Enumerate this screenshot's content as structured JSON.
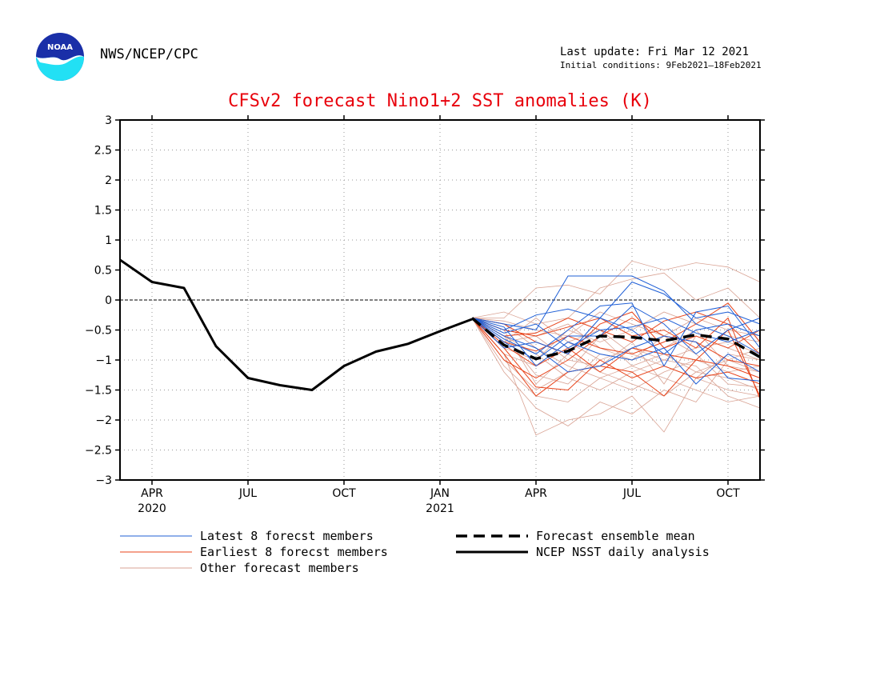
{
  "header": {
    "agency": "NWS/NCEP/CPC",
    "last_update": "Last update: Fri Mar 12 2021",
    "initial_conditions": "Initial conditions: 9Feb2021–18Feb2021",
    "logo_icon": "noaa-logo-icon",
    "logo_text": "NOAA"
  },
  "chart_data": {
    "type": "line",
    "title": "CFSv2 forecast Nino1+2 SST anomalies (K)",
    "xlabel": "",
    "ylabel": "",
    "x_range": [
      "2020-03",
      "2021-11"
    ],
    "ylim": [
      -3,
      3
    ],
    "y_ticks": [
      "3",
      "2.5",
      "2",
      "1.5",
      "1",
      "0.5",
      "0",
      "−0.5",
      "−1",
      "−1.5",
      "−2",
      "−2.5",
      "−3"
    ],
    "x_ticks": [
      {
        "month": "2020-04",
        "label": "APR",
        "year": "2020"
      },
      {
        "month": "2020-07",
        "label": "JUL",
        "year": ""
      },
      {
        "month": "2020-10",
        "label": "OCT",
        "year": ""
      },
      {
        "month": "2021-01",
        "label": "JAN",
        "year": "2021"
      },
      {
        "month": "2021-04",
        "label": "APR",
        "year": ""
      },
      {
        "month": "2021-07",
        "label": "JUL",
        "year": ""
      },
      {
        "month": "2021-10",
        "label": "OCT",
        "year": ""
      }
    ],
    "grid": true,
    "colors": {
      "observed": "#000000",
      "mean": "#000000",
      "latest": "#1f5fd6",
      "earliest": "#e8431a",
      "other": "#d9a394",
      "zero_line": "#000000"
    },
    "legend": {
      "placement": "bottom",
      "entries": [
        {
          "label": "Latest 8 forecst members",
          "style": "latest"
        },
        {
          "label": "Earliest 8 forecst members",
          "style": "earliest"
        },
        {
          "label": "Other forecast members",
          "style": "other"
        },
        {
          "label": "Forecast ensemble mean",
          "style": "mean"
        },
        {
          "label": "NCEP NSST daily analysis",
          "style": "observed"
        }
      ]
    },
    "forecast_months": [
      "2021-02",
      "2021-03",
      "2021-04",
      "2021-05",
      "2021-06",
      "2021-07",
      "2021-08",
      "2021-09",
      "2021-10",
      "2021-11"
    ],
    "observed": {
      "name": "NCEP NSST daily analysis",
      "x": [
        "2020-03",
        "2020-04",
        "2020-05",
        "2020-06",
        "2020-07",
        "2020-08",
        "2020-09",
        "2020-10",
        "2020-11",
        "2020-12",
        "2021-01",
        "2021-02"
      ],
      "y": [
        0.67,
        0.3,
        0.2,
        -0.77,
        -1.3,
        -1.42,
        -1.5,
        -1.1,
        -0.86,
        -0.73,
        -0.52,
        -0.32
      ]
    },
    "ensemble_mean": {
      "name": "Forecast ensemble mean",
      "y": [
        -0.3,
        -0.75,
        -0.98,
        -0.85,
        -0.6,
        -0.62,
        -0.68,
        -0.58,
        -0.65,
        -0.95
      ]
    },
    "members": [
      {
        "group": "latest",
        "y": [
          -0.3,
          -0.4,
          -0.5,
          0.4,
          0.4,
          0.4,
          0.15,
          -0.4,
          -0.6,
          -0.9
        ]
      },
      {
        "group": "latest",
        "y": [
          -0.3,
          -0.5,
          -0.25,
          -0.15,
          -0.3,
          0.3,
          0.1,
          -0.3,
          -0.2,
          -0.4
        ]
      },
      {
        "group": "latest",
        "y": [
          -0.3,
          -0.6,
          -0.8,
          -1.2,
          -1.1,
          -0.8,
          -0.6,
          -0.7,
          -1.3,
          -1.35
        ]
      },
      {
        "group": "latest",
        "y": [
          -0.3,
          -0.7,
          -1.0,
          -0.6,
          -0.6,
          -0.1,
          -0.4,
          -0.9,
          -0.5,
          -0.3
        ]
      },
      {
        "group": "latest",
        "y": [
          -0.3,
          -0.8,
          -0.7,
          -0.9,
          -0.3,
          -0.5,
          -0.9,
          -0.5,
          -0.4,
          -0.6
        ]
      },
      {
        "group": "latest",
        "y": [
          -0.3,
          -0.45,
          -1.1,
          -0.7,
          -0.9,
          -1.0,
          -0.8,
          -1.4,
          -0.9,
          -1.2
        ]
      },
      {
        "group": "latest",
        "y": [
          -0.3,
          -0.55,
          -0.4,
          -0.8,
          -0.5,
          -0.45,
          -0.3,
          -0.55,
          -0.7,
          -0.5
        ]
      },
      {
        "group": "latest",
        "y": [
          -0.3,
          -0.65,
          -0.9,
          -0.5,
          -0.1,
          -0.05,
          -1.1,
          -0.2,
          -0.1,
          -0.8
        ]
      },
      {
        "group": "earliest",
        "y": [
          -0.3,
          -0.5,
          -0.6,
          -0.45,
          -0.3,
          -0.6,
          -0.5,
          -0.8,
          -0.3,
          -1.65
        ]
      },
      {
        "group": "earliest",
        "y": [
          -0.3,
          -0.9,
          -1.6,
          -1.2,
          -1.1,
          -1.2,
          -1.6,
          -1.0,
          -0.5,
          -1.6
        ]
      },
      {
        "group": "earliest",
        "y": [
          -0.3,
          -0.7,
          -0.85,
          -0.6,
          -0.8,
          -0.9,
          -0.7,
          -0.4,
          -0.05,
          -0.7
        ]
      },
      {
        "group": "earliest",
        "y": [
          -0.3,
          -1.0,
          -1.3,
          -1.0,
          -0.6,
          -0.3,
          -0.6,
          -0.7,
          -1.0,
          -1.1
        ]
      },
      {
        "group": "earliest",
        "y": [
          -0.3,
          -0.6,
          -0.55,
          -0.3,
          -0.5,
          -0.7,
          -0.35,
          -0.2,
          -0.4,
          -0.9
        ]
      },
      {
        "group": "earliest",
        "y": [
          -0.3,
          -0.8,
          -1.45,
          -1.5,
          -1.0,
          -1.3,
          -1.1,
          -1.3,
          -1.2,
          -1.4
        ]
      },
      {
        "group": "earliest",
        "y": [
          -0.3,
          -0.4,
          -0.7,
          -0.9,
          -0.4,
          -0.2,
          -0.8,
          -0.6,
          -0.8,
          -0.5
        ]
      },
      {
        "group": "earliest",
        "y": [
          -0.3,
          -0.75,
          -1.1,
          -0.8,
          -1.2,
          -0.8,
          -0.9,
          -1.0,
          -1.1,
          -1.3
        ]
      },
      {
        "group": "other",
        "y": [
          -0.3,
          -0.3,
          0.2,
          0.25,
          0.1,
          0.65,
          0.5,
          0.62,
          0.55,
          0.3
        ]
      },
      {
        "group": "other",
        "y": [
          -0.3,
          -0.9,
          -2.25,
          -2.0,
          -1.9,
          -1.6,
          -2.2,
          -1.3,
          -1.5,
          -1.6
        ]
      },
      {
        "group": "other",
        "y": [
          -0.3,
          -1.2,
          -1.8,
          -2.1,
          -1.7,
          -1.9,
          -1.5,
          -1.7,
          -1.0,
          -1.2
        ]
      },
      {
        "group": "other",
        "y": [
          -0.3,
          -0.2,
          -0.4,
          -0.3,
          0.2,
          0.35,
          0.45,
          0.0,
          0.2,
          -0.3
        ]
      },
      {
        "group": "other",
        "y": [
          -0.3,
          -1.0,
          -1.5,
          -1.2,
          -0.6,
          -1.1,
          -0.9,
          -1.2,
          -1.3,
          -1.5
        ]
      },
      {
        "group": "other",
        "y": [
          -0.3,
          -0.5,
          -0.6,
          -1.0,
          -1.1,
          -0.7,
          -1.4,
          -0.6,
          -0.8,
          -1.0
        ]
      },
      {
        "group": "other",
        "y": [
          -0.3,
          -0.6,
          -1.25,
          -1.4,
          -0.9,
          -1.0,
          -0.6,
          -0.9,
          -1.4,
          -1.45
        ]
      },
      {
        "group": "other",
        "y": [
          -0.3,
          -0.7,
          -0.3,
          -0.7,
          -1.0,
          -0.8,
          -1.0,
          -0.8,
          -0.7,
          -0.9
        ]
      },
      {
        "group": "other",
        "y": [
          -0.3,
          -0.8,
          -1.0,
          -0.5,
          -0.7,
          -0.5,
          -0.2,
          -0.4,
          -0.6,
          -0.7
        ]
      },
      {
        "group": "other",
        "y": [
          -0.3,
          -0.4,
          -0.8,
          -1.1,
          -1.3,
          -1.5,
          -1.2,
          -1.0,
          -1.2,
          -1.1
        ]
      },
      {
        "group": "other",
        "y": [
          -0.3,
          -0.9,
          -1.1,
          -0.7,
          -0.5,
          -0.9,
          -1.1,
          -1.3,
          -0.9,
          -1.0
        ]
      },
      {
        "group": "other",
        "y": [
          -0.3,
          -0.6,
          -0.9,
          -1.3,
          -1.5,
          -1.2,
          -1.0,
          -1.1,
          -1.6,
          -1.8
        ]
      },
      {
        "group": "other",
        "y": [
          -0.3,
          -0.5,
          -1.4,
          -0.9,
          -1.2,
          -1.4,
          -1.6,
          -1.2,
          -1.0,
          -0.8
        ]
      },
      {
        "group": "other",
        "y": [
          -0.3,
          -0.7,
          -0.6,
          -0.4,
          -0.8,
          -1.0,
          -0.8,
          -0.5,
          -1.1,
          -1.2
        ]
      },
      {
        "group": "other",
        "y": [
          -0.3,
          -1.1,
          -1.6,
          -1.7,
          -1.3,
          -1.1,
          -1.3,
          -1.5,
          -1.7,
          -1.6
        ]
      },
      {
        "group": "other",
        "y": [
          -0.3,
          -0.35,
          -0.5,
          -0.6,
          -0.2,
          -0.4,
          -0.6,
          -0.3,
          -0.5,
          -0.6
        ]
      }
    ]
  }
}
